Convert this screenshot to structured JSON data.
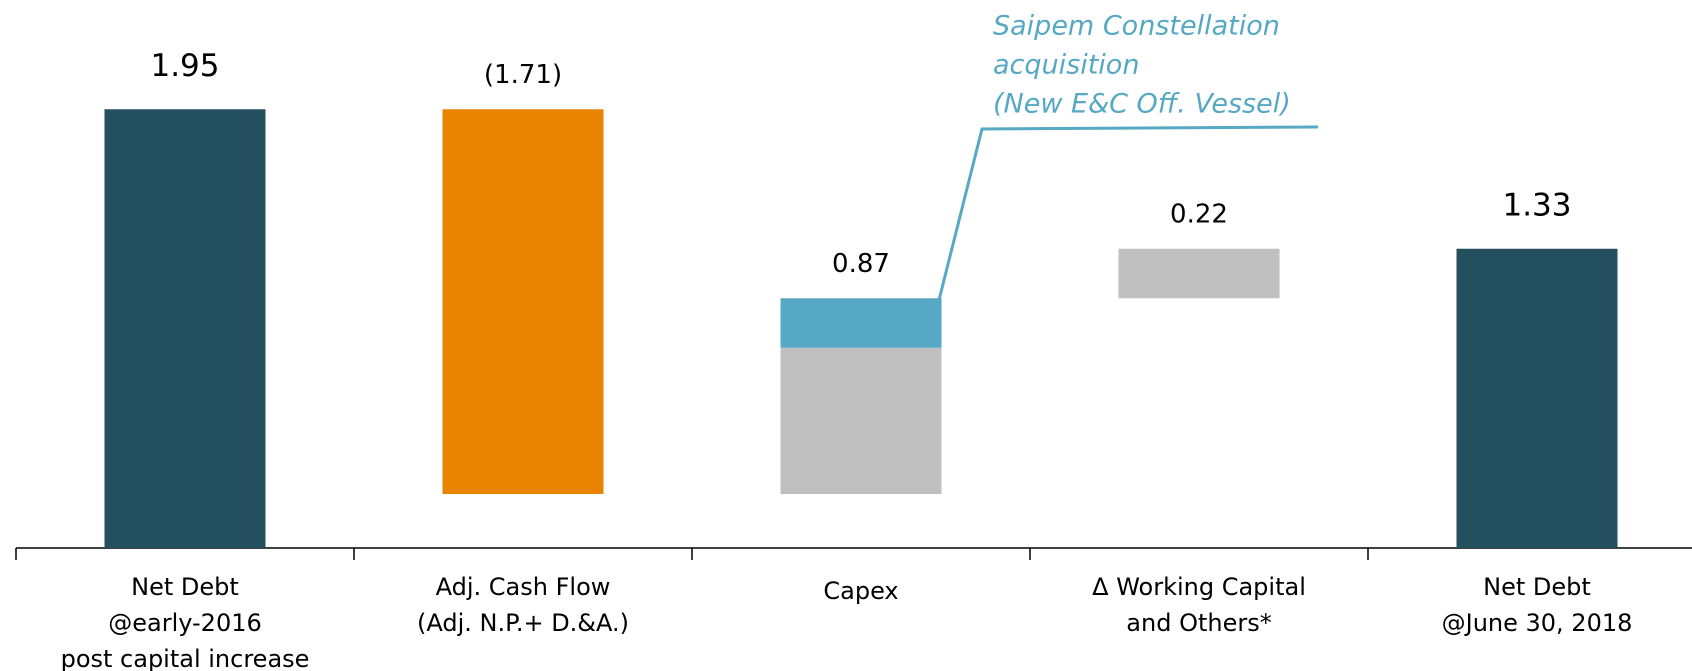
{
  "chart_data": {
    "type": "waterfall",
    "categories": [
      [
        "Net Debt",
        "@early-2016",
        "post capital increase"
      ],
      [
        "Adj. Cash Flow",
        "(Adj. N.P.+ D.&A.)"
      ],
      [
        "Capex"
      ],
      [
        "Δ Working Capital",
        "and Others*"
      ],
      [
        "Net Debt",
        "@June 30, 2018"
      ]
    ],
    "kinds": [
      "total",
      "delta",
      "delta",
      "delta",
      "total"
    ],
    "values": [
      1.95,
      -1.71,
      0.87,
      0.22,
      1.33
    ],
    "value_labels": [
      "1.95",
      "(1.71)",
      "0.87",
      "0.22",
      "1.33"
    ],
    "colors": {
      "total": "#234f5e",
      "negative": "#e88400",
      "positive": "#bfbfbf"
    },
    "breakdown": {
      "category": "Capex",
      "values": [
        0.65,
        0.22
      ],
      "colors": [
        "#bfbfbf",
        "#56a8c4"
      ]
    },
    "annotation": [
      "Saipem Constellation",
      "acquisition",
      "(New E&C Off. Vessel)"
    ],
    "ylim": [
      0,
      2.4
    ]
  }
}
